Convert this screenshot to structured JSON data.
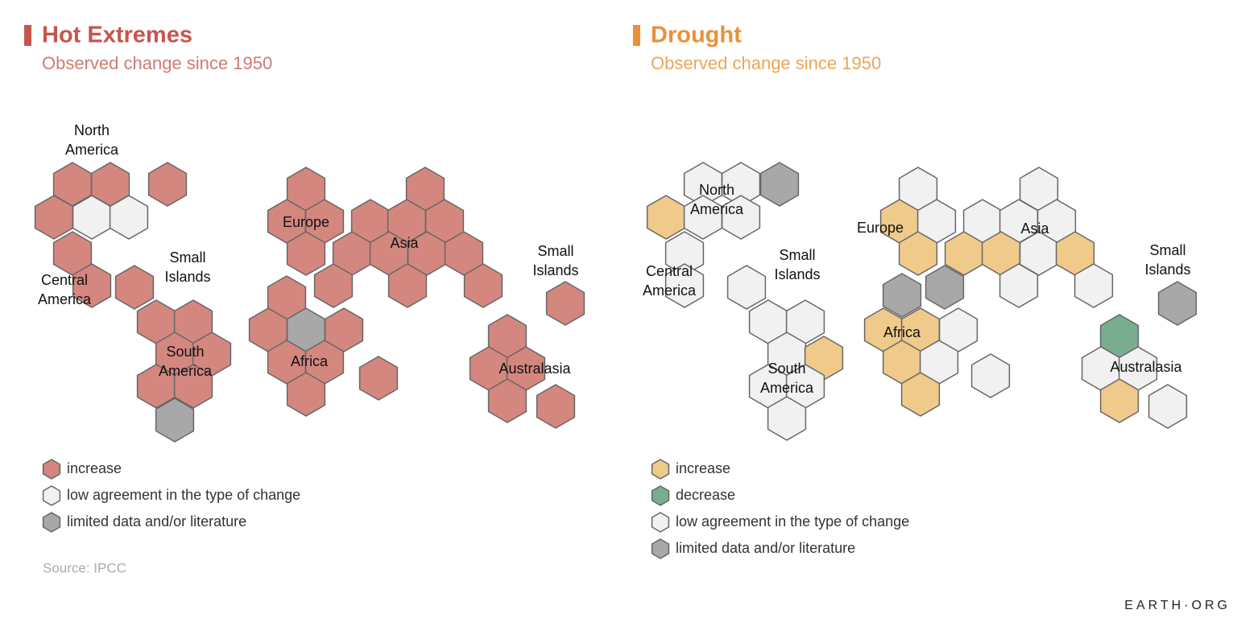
{
  "panels": [
    {
      "title": "Hot Extremes",
      "subtitle": "Observed change since 1950",
      "color": "#c5564f",
      "subtitle_color": "#cf7b72",
      "regions": [
        [
          "North",
          "America"
        ],
        [
          "Central",
          "America"
        ],
        [
          "Small",
          "Islands"
        ],
        [
          "South",
          "America"
        ],
        [
          "Europe"
        ],
        [
          "Asia"
        ],
        [
          "Africa"
        ],
        [
          "Small",
          "Islands"
        ],
        [
          "Australasia"
        ]
      ],
      "legend": [
        {
          "label": "increase",
          "color": "#d4877f"
        },
        {
          "label": "low agreement in the type of change",
          "color": "#f1f1f1"
        },
        {
          "label": "limited data and/or literature",
          "color": "#a8a8a8"
        }
      ],
      "source": "Source: IPCC"
    },
    {
      "title": "Drought",
      "subtitle": "Observed change since 1950",
      "color": "#e8913a",
      "subtitle_color": "#eba55a",
      "regions": [
        [
          "North",
          "America"
        ],
        [
          "Central",
          "America"
        ],
        [
          "Small",
          "Islands"
        ],
        [
          "South",
          "America"
        ],
        [
          "Europe"
        ],
        [
          "Asia"
        ],
        [
          "Africa"
        ],
        [
          "Small",
          "Islands"
        ],
        [
          "Australasia"
        ]
      ],
      "legend": [
        {
          "label": "increase",
          "color": "#efca8a"
        },
        {
          "label": "decrease",
          "color": "#78ad8f"
        },
        {
          "label": "low agreement in the type of change",
          "color": "#f1f1f1"
        },
        {
          "label": "limited data and/or literature",
          "color": "#a8a8a8"
        }
      ]
    }
  ],
  "brand": "EARTH·ORG"
}
